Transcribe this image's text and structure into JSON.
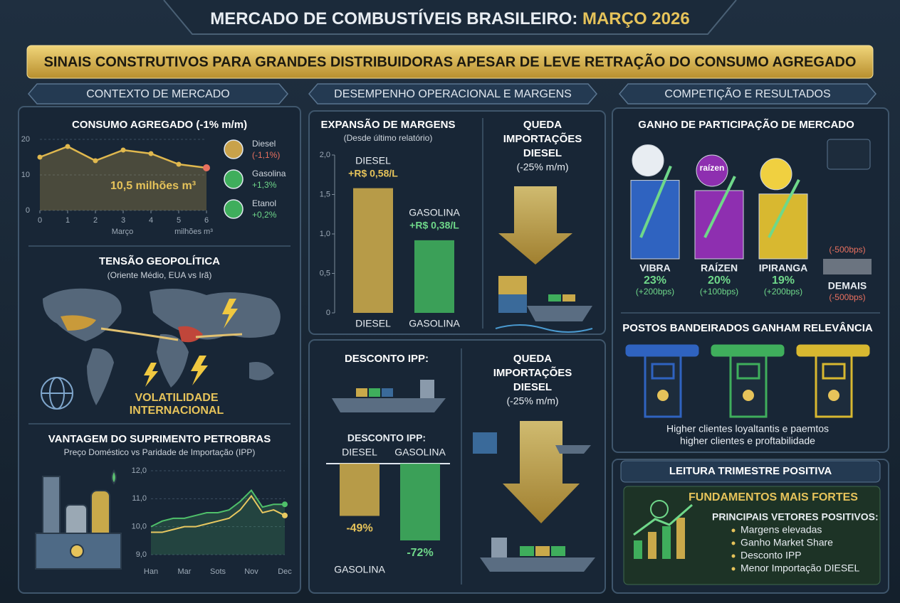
{
  "header": {
    "title": "MERCADO DE COMBUSTÍVEIS BRASILEIRO:",
    "highlight": "MARÇO 2026"
  },
  "banner": "SINAIS CONSTRUTIVOS PARA GRANDES DISTRIBUIDORAS APESAR DE LEVE RETRAÇÃO DO CONSUMO AGREGADO",
  "columns": [
    "CONTEXTO DE MERCADO",
    "DESEMPENHO OPERACIONAL E MARGENS",
    "COMPETIÇÃO E RESULTADOS"
  ],
  "consumo": {
    "type": "line",
    "title": "CONSUMO AGREGADO (-1% m/m)",
    "x": [
      0,
      1,
      2,
      3,
      4,
      5,
      6
    ],
    "values": [
      15,
      18,
      14,
      17,
      16,
      13,
      12
    ],
    "color": "#e0b84e",
    "xlim": [
      0,
      6
    ],
    "ylim": [
      0,
      20
    ],
    "xticks": [
      0,
      1,
      2,
      3,
      4,
      5,
      6
    ],
    "yticks": [
      0,
      10,
      20
    ],
    "xlabel": "Março",
    "unit_label": "milhões m³",
    "annotation": "10,5 milhões m³",
    "legend": [
      {
        "name": "Diesel",
        "change": "(-1,1%)",
        "color": "#c9a24a",
        "change_color": "#e8705f"
      },
      {
        "name": "Gasolina",
        "change": "+1,3%",
        "color": "#3fae5c",
        "change_color": "#6fd88a"
      },
      {
        "name": "Etanol",
        "change": "+0,2%",
        "color": "#3fae5c",
        "change_color": "#6fd88a"
      }
    ]
  },
  "geo": {
    "title": "TENSÃO GEOPOLÍTICA",
    "subtitle": "(Oriente Médio, EUA vs Irã)",
    "label_lines": [
      "VOLATILIDADE",
      "INTERNACIONAL"
    ]
  },
  "ipp": {
    "type": "line",
    "title": "VANTAGEM DO SUPRIMENTO PETROBRAS",
    "subtitle": "Preço Doméstico vs Paridade de Importação (IPP)",
    "categories": [
      "Han",
      null,
      null,
      "Mar",
      null,
      null,
      "Sots",
      null,
      null,
      "Nov",
      null,
      null,
      "Dec"
    ],
    "series": [
      {
        "color": "#4fc06a",
        "values": [
          10.0,
          10.2,
          10.3,
          10.3,
          10.4,
          10.5,
          10.5,
          10.6,
          10.9,
          11.3,
          10.7,
          10.8,
          10.8
        ]
      },
      {
        "color": "#e8c860",
        "values": [
          9.8,
          9.8,
          9.9,
          10.0,
          10.0,
          10.1,
          10.2,
          10.3,
          10.6,
          11.1,
          10.5,
          10.6,
          10.4
        ]
      }
    ],
    "ylim": [
      9,
      12
    ],
    "yticks": [
      {
        "value": 12,
        "label": "12,0"
      },
      {
        "value": 11,
        "label": "11,0"
      },
      {
        "value": 10,
        "label": "10,0"
      },
      {
        "value": 9,
        "label": "9,0"
      }
    ]
  },
  "margens": {
    "type": "bar",
    "title": "EXPANSÃO DE MARGENS",
    "subtitle": "(Desde último relatório)",
    "categories": [
      "DIESEL",
      "GASOLINA"
    ],
    "values": [
      1.58,
      0.92
    ],
    "colors": [
      "#c9a94a",
      "#3fae5c"
    ],
    "ylim": [
      0,
      2
    ],
    "yticks": [
      {
        "value": 2,
        "label": "2,0"
      },
      {
        "value": 1.5,
        "label": "1,5"
      },
      {
        "value": 1,
        "label": "1,0"
      },
      {
        "value": 0.5,
        "label": "0,5"
      },
      0
    ],
    "annotations": [
      {
        "name": "DIESEL",
        "text": "+R$ 0,58/L"
      },
      {
        "name": "GASOLINA",
        "text": "+R$ 0,38/L"
      }
    ]
  },
  "importacoes": [
    {
      "title_lines": [
        "QUEDA",
        "IMPORTAÇÕES",
        "DIESEL"
      ],
      "subtitle": "(-25% m/m)"
    },
    {
      "title_lines": [
        "QUEDA",
        "IMPORTAÇÕES",
        "DIESEL"
      ],
      "subtitle": "(-25% m/m)"
    }
  ],
  "desconto": {
    "type": "bar",
    "title": "DESCONTO IPP:",
    "chart_title": "DESCONTO IPP:",
    "categories": [
      "DIESEL",
      "GASOLINA"
    ],
    "values": [
      -49,
      -72
    ],
    "value_labels": [
      "-49%",
      "-72%"
    ],
    "colors": [
      "#c9a94a",
      "#3fae5c"
    ],
    "footnote": "GASOLINA"
  },
  "share": {
    "type": "bar",
    "title": "GANHO DE PARTICIPAÇÃO DE MERCADO",
    "categories": [
      "VIBRA",
      "RAÍZEN",
      "IPIRANGA",
      "DEMAIS"
    ],
    "values": [
      23,
      20,
      19,
      null
    ],
    "value_labels": [
      "23%",
      "20%",
      "19%",
      null
    ],
    "changes": [
      "(+200bps)",
      "(+100bps)",
      "(+200bps)",
      "(-500bps)"
    ],
    "colors": [
      "#2f63c0",
      "#8e2fb0",
      "#d8b830",
      "#6b7480"
    ],
    "demais_note": "(-500bps)",
    "logo_text": "raízen"
  },
  "postos": {
    "title": "POSTOS BANDEIRADOS GANHAM RELEVÂNCIA",
    "text_lines": [
      "Higher clientes loyaltantis e paemtos",
      "higher clientes e proftabilidade"
    ]
  },
  "leitura": {
    "header": "LEITURA TRIMESTRE POSITIVA",
    "title": "FUNDAMENTOS MAIS FORTES",
    "subtitle": "PRINCIPAIS VETORES POSITIVOS:",
    "items": [
      "Margens elevadas",
      "Ganho Market Share",
      "Desconto IPP",
      "Menor Importação DIESEL"
    ]
  }
}
